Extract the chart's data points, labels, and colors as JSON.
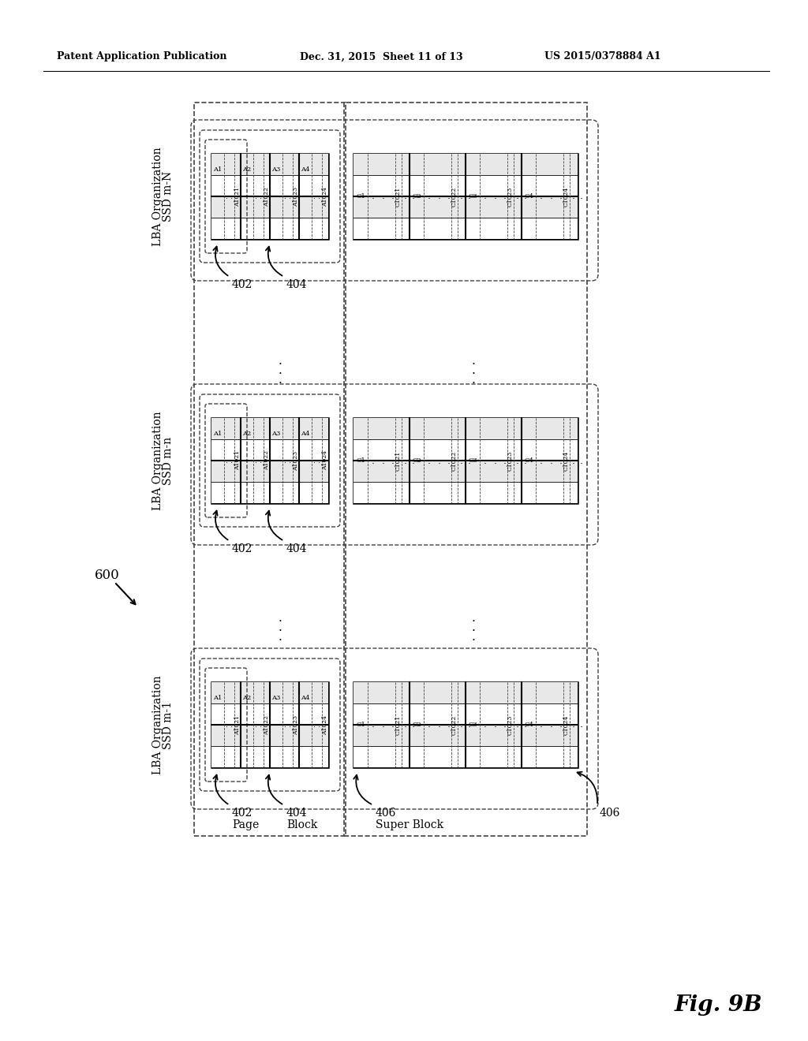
{
  "title_left": "Patent Application Publication",
  "title_mid": "Dec. 31, 2015  Sheet 11 of 13",
  "title_right": "US 2015/0378884 A1",
  "fig_label": "Fig. 9B",
  "ref_600": "600",
  "ref_402": "402",
  "ref_404": "404",
  "ref_406": "406",
  "label_page": "Page",
  "label_block": "Block",
  "label_super_block": "Super Block",
  "ssd_labels": [
    "SSD m-N\nLBA Organization",
    "SSD m-n\nLBA Organization",
    "SSD m-1\nLBA Organization"
  ],
  "col_labels_A": [
    "A1",
    "A2",
    "A3",
    "A4"
  ],
  "col_nums_A": [
    "A1021",
    "A1022",
    "A1023",
    "A1024"
  ],
  "col_labels_C": [
    "C1",
    "C2",
    "C3",
    "C4"
  ],
  "col_nums_C": [
    "C1021",
    "C1022",
    "C1023",
    "C1024"
  ],
  "bg_color": "#ffffff",
  "line_color": "#000000",
  "dashed_color": "#444444"
}
